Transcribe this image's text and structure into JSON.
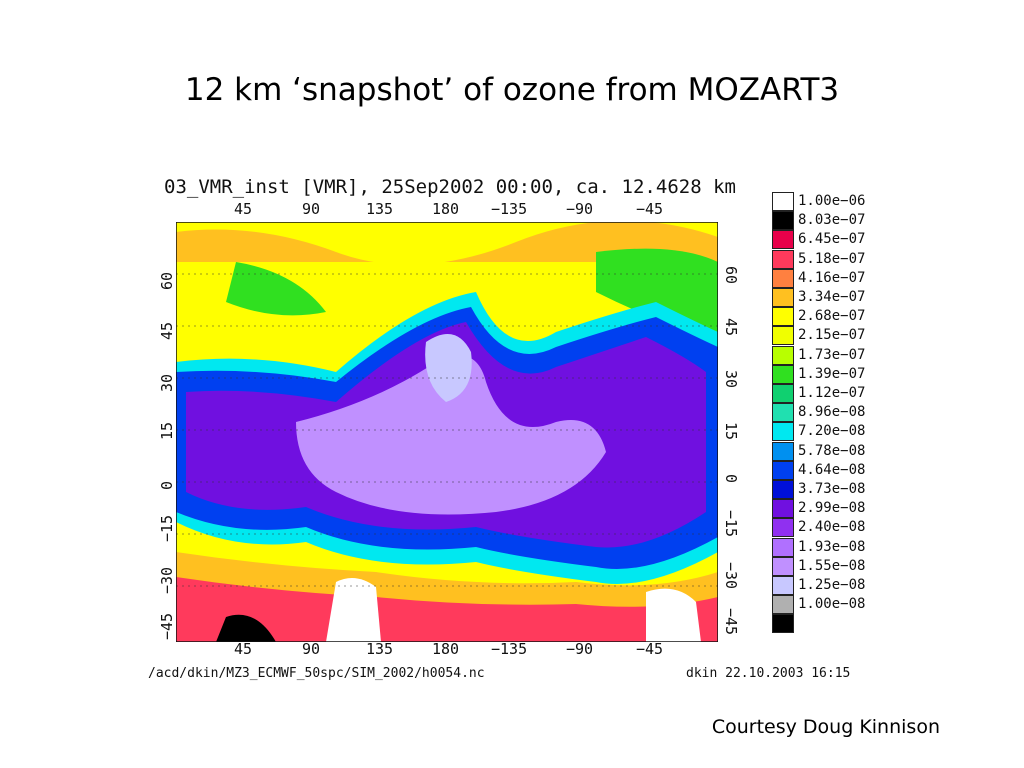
{
  "slide": {
    "title": "12 km ‘snapshot’ of ozone from MOZART3",
    "courtesy": "Courtesy Doug Kinnison"
  },
  "plot": {
    "header": "03_VMR_inst [VMR], 25Sep2002 00:00, ca. 12.4628 km",
    "footer_left": "/acd/dkin/MZ3_ECMWF_50spc/SIM_2002/h0054.nc",
    "footer_right": "dkin 22.10.2003 16:15",
    "lon_ticks": [
      "45",
      "90",
      "135",
      "180",
      "−135",
      "−90",
      "−45"
    ],
    "lat_ticks": [
      "60",
      "45",
      "30",
      "15",
      "0",
      "−15",
      "−30",
      "−45"
    ]
  },
  "legend": {
    "entries": [
      {
        "label": "1.00e−06",
        "color": "#ffffff"
      },
      {
        "label": "8.03e−07",
        "color": "#000000"
      },
      {
        "label": "6.45e−07",
        "color": "#e8004a"
      },
      {
        "label": "5.18e−07",
        "color": "#ff3a5c"
      },
      {
        "label": "4.16e−07",
        "color": "#ff8040"
      },
      {
        "label": "3.34e−07",
        "color": "#ffc020"
      },
      {
        "label": "2.68e−07",
        "color": "#ffff00"
      },
      {
        "label": "2.15e−07",
        "color": "#f0ff00"
      },
      {
        "label": "1.73e−07",
        "color": "#b8ff00"
      },
      {
        "label": "1.39e−07",
        "color": "#30e020"
      },
      {
        "label": "1.12e−07",
        "color": "#10d070"
      },
      {
        "label": "8.96e−08",
        "color": "#20e0b0"
      },
      {
        "label": "7.20e−08",
        "color": "#00e8f0"
      },
      {
        "label": "5.78e−08",
        "color": "#0090f0"
      },
      {
        "label": "4.64e−08",
        "color": "#0040f0"
      },
      {
        "label": "3.73e−08",
        "color": "#0010d8"
      },
      {
        "label": "2.99e−08",
        "color": "#7010e0"
      },
      {
        "label": "2.40e−08",
        "color": "#9030f0"
      },
      {
        "label": "1.93e−08",
        "color": "#b070ff"
      },
      {
        "label": "1.55e−08",
        "color": "#c090ff"
      },
      {
        "label": "1.25e−08",
        "color": "#c8c8ff"
      },
      {
        "label": "1.00e−08",
        "color": "#b0b0b0"
      },
      {
        "label": "",
        "color": "#000000"
      }
    ]
  }
}
